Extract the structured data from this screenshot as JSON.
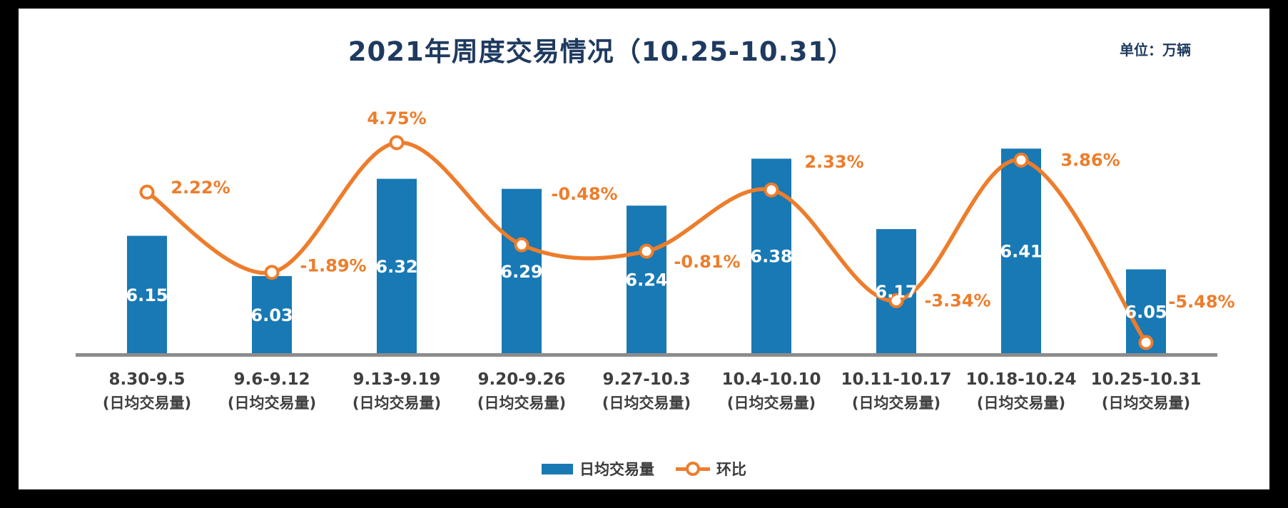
{
  "header": {
    "title": "2021年周度交易情况（10.25-10.31）",
    "unit_label": "单位：万辆"
  },
  "legend": {
    "bar_label": "日均交易量",
    "line_label": "环比"
  },
  "colors": {
    "bar": "#1879b4",
    "line": "#ed7d2b",
    "marker_fill": "#ffffff",
    "title": "#1f3a5f",
    "unit": "#1f3a5f",
    "axis_label": "#3f3f3f",
    "baseline": "#8c8c8c",
    "bar_label": "#ffffff",
    "pct_label": "#ed7d2b",
    "legend_text": "#3a3a3a"
  },
  "chart_data": {
    "type": "bar",
    "subtype": "bar+line combo",
    "title": "2021年周度交易情况（10.25-10.31）",
    "unit": "万辆",
    "categories": [
      "8.30-9.5",
      "9.6-9.12",
      "9.13-9.19",
      "9.20-9.26",
      "9.27-10.3",
      "10.4-10.10",
      "10.11-10.17",
      "10.18-10.24",
      "10.25-10.31"
    ],
    "category_sublabel": "(日均交易量)",
    "series": [
      {
        "name": "日均交易量",
        "type": "bar",
        "values": [
          6.15,
          6.03,
          6.32,
          6.29,
          6.24,
          6.38,
          6.17,
          6.41,
          6.05
        ],
        "labels": [
          "6.15",
          "6.03",
          "6.32",
          "6.29",
          "6.24",
          "6.38",
          "6.17",
          "6.41",
          "6.05"
        ]
      },
      {
        "name": "环比",
        "type": "line",
        "values_pct": [
          2.22,
          -1.89,
          4.75,
          -0.48,
          -0.81,
          2.33,
          -3.34,
          3.86,
          -5.48
        ],
        "labels": [
          "2.22%",
          "-1.89%",
          "4.75%",
          "-0.48%",
          "-0.81%",
          "2.33%",
          "-3.34%",
          "3.86%",
          "-5.48%"
        ]
      }
    ],
    "layout_hints": {
      "legend_position": "bottom-center",
      "grid": "off",
      "line_smooth": true,
      "bar_axis_implied_min": 5.8,
      "value_labels": "inside bars (white) for bars, orange beside markers for line"
    }
  }
}
